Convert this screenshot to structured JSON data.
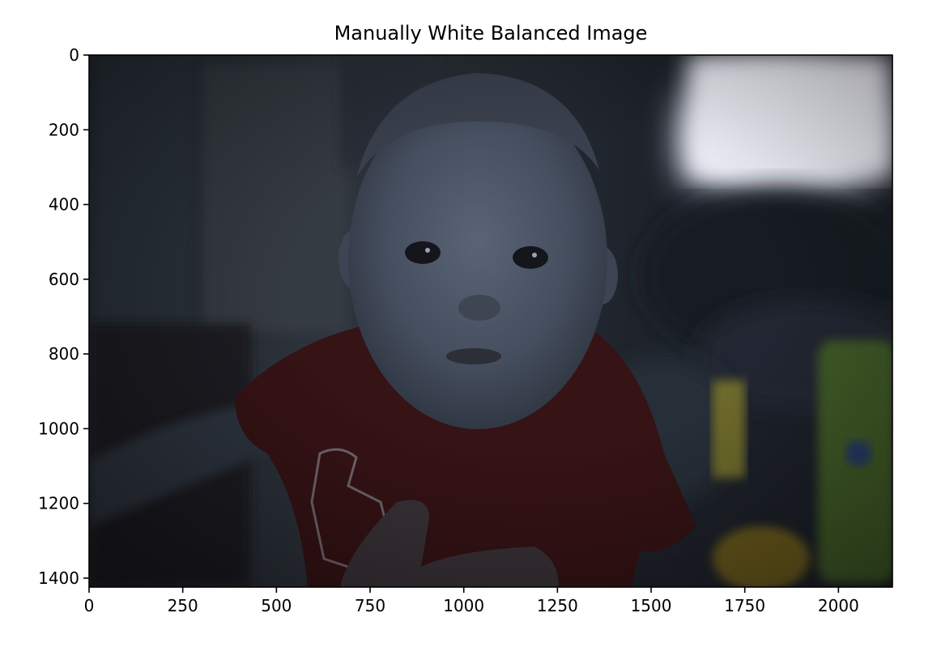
{
  "title": "Manually White Balanced Image",
  "axes": {
    "x_ticks": [
      "0",
      "250",
      "500",
      "750",
      "1000",
      "1250",
      "1500",
      "1750",
      "2000"
    ],
    "y_ticks": [
      "0",
      "200",
      "400",
      "600",
      "800",
      "1000",
      "1200",
      "1400"
    ],
    "x_tick_values": [
      0,
      250,
      500,
      750,
      1000,
      1250,
      1500,
      1750,
      2000
    ],
    "y_tick_values": [
      0,
      200,
      400,
      600,
      800,
      1000,
      1200,
      1400
    ],
    "x_range": [
      0,
      2144
    ],
    "y_range": [
      1424,
      0
    ]
  },
  "image": {
    "description_name": "photo-baby-red-shirt",
    "palette": {
      "background": "#1a1e26",
      "window_glow": "#f7f5ff",
      "skin": "#4a5466",
      "shirt": "#3a1416",
      "hand": "#3b3539",
      "toy_green": "#4a6a2a",
      "toy_yellow": "#8a7a2a"
    }
  }
}
